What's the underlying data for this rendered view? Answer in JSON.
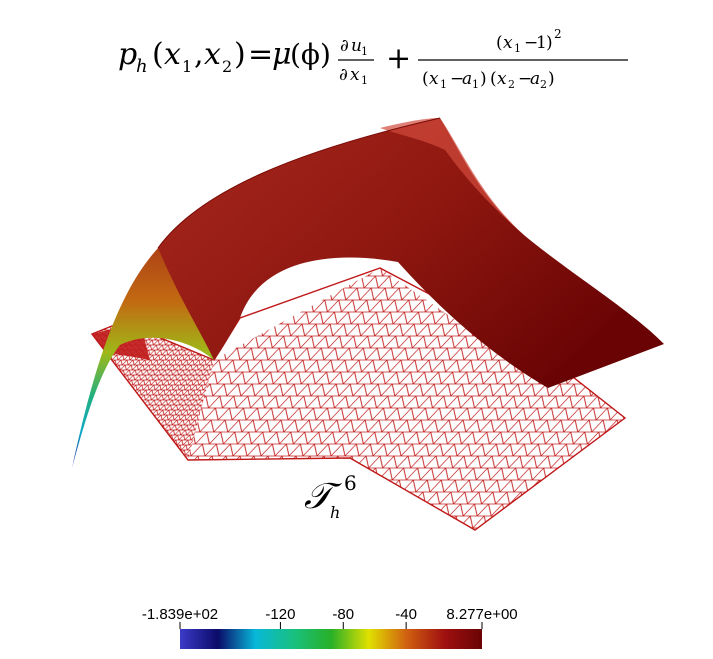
{
  "formula": {
    "p": "p",
    "h": "h",
    "open": "(",
    "x": "x",
    "one": "1",
    "comma": ",",
    "two": "2",
    "close": ")",
    "equals": "=",
    "mu": "μ",
    "phi": "(ϕ)",
    "partial": "∂",
    "u": "u",
    "plus": "+",
    "minus": "−",
    "a": "a",
    "square": "2"
  },
  "mesh_label": {
    "symbol": "𝒯",
    "subscript": "h",
    "superscript": "6"
  },
  "colorbar": {
    "tick_labels": [
      "-1.839e+02",
      "-120",
      "-80",
      "-40",
      "8.277e+00"
    ],
    "tick_values": [
      -183.9,
      -120,
      -80,
      -40,
      8.277
    ],
    "range": [
      -183.9,
      8.277
    ],
    "colormap": [
      "#3b3bc8",
      "#0b0b6a",
      "#08b8d8",
      "#18c080",
      "#28b028",
      "#e0e000",
      "#d06010",
      "#a01010",
      "#6a0404"
    ]
  },
  "colors": {
    "surface_top": "#8e1710",
    "surface_highlight": "#c8352a",
    "mesh": "#c01818",
    "background": "#ffffff"
  }
}
